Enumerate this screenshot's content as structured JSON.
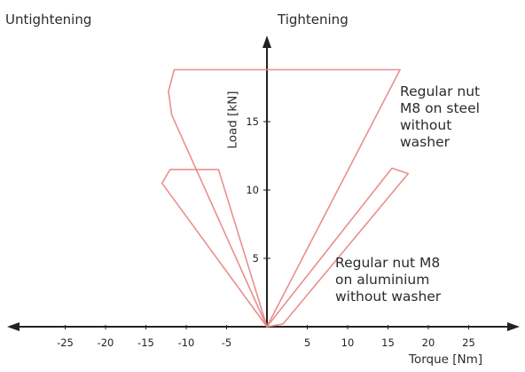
{
  "labels": {
    "left": "Untightening",
    "right": "Tightening"
  },
  "chart_data": {
    "type": "line",
    "title": "",
    "xlabel": "Torque [Nm]",
    "ylabel": "Load [kN]",
    "xlim": [
      -30,
      30
    ],
    "ylim": [
      0,
      20.5
    ],
    "x_ticks": [
      -25,
      -20,
      -15,
      -10,
      -5,
      5,
      10,
      15,
      20,
      25
    ],
    "y_ticks": [
      5,
      10,
      15
    ],
    "grid": false,
    "line_color": "#e8898a",
    "series": [
      {
        "name": "Regular nut M8 on steel without washer",
        "points": [
          [
            0,
            0
          ],
          [
            16.5,
            18.8
          ],
          [
            16.2,
            18.8
          ],
          [
            -11.5,
            18.8
          ],
          [
            -12.2,
            17.2
          ],
          [
            -11.8,
            15.5
          ],
          [
            0,
            0
          ]
        ]
      },
      {
        "name": "Regular nut M8 on aluminium without washer",
        "points": [
          [
            0,
            0
          ],
          [
            15.5,
            11.6
          ],
          [
            17.5,
            11.2
          ],
          [
            2,
            0.2
          ],
          [
            0,
            0
          ],
          [
            -13,
            10.5
          ],
          [
            -12,
            11.5
          ],
          [
            -6,
            11.5
          ],
          [
            0,
            0
          ]
        ]
      }
    ],
    "annotations": [
      "Regular nut\nM8 on steel\nwithout\nwasher",
      "Regular nut M8\non aluminium\nwithout washer"
    ]
  }
}
